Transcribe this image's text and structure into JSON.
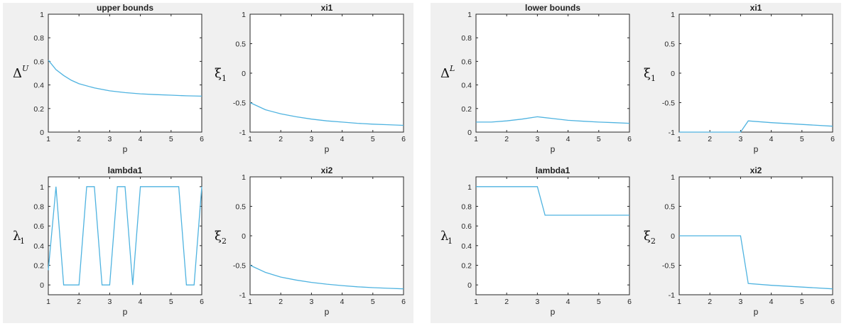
{
  "colors": {
    "series": "#4fb3e0",
    "figure_bg": "#f0f0f0",
    "axes_bg": "#ffffff",
    "axes_edge": "#262626"
  },
  "chart_data": [
    {
      "id": "ub",
      "figure": "left",
      "type": "line",
      "title": "upper bounds",
      "xlabel": "p",
      "ylabel": "Δ",
      "ylabel_sup": "U",
      "xlim": [
        1,
        6
      ],
      "ylim": [
        0,
        1
      ],
      "xticks": [
        "1",
        "2",
        "3",
        "4",
        "5",
        "6"
      ],
      "yticks": [
        "0",
        "0.2",
        "0.4",
        "0.6",
        "0.8",
        "1"
      ],
      "x": [
        1,
        1.25,
        1.5,
        1.75,
        2,
        2.5,
        3,
        3.5,
        4,
        4.5,
        5,
        5.5,
        6
      ],
      "y": [
        0.61,
        0.53,
        0.48,
        0.44,
        0.41,
        0.375,
        0.35,
        0.335,
        0.325,
        0.318,
        0.313,
        0.308,
        0.305
      ]
    },
    {
      "id": "xi1a",
      "figure": "left",
      "type": "line",
      "title": "xi1",
      "xlabel": "p",
      "ylabel": "ξ",
      "ylabel_sub": "1",
      "xlim": [
        1,
        6
      ],
      "ylim": [
        -1,
        1
      ],
      "xticks": [
        "1",
        "2",
        "3",
        "4",
        "5",
        "6"
      ],
      "yticks": [
        "-1",
        "-0.5",
        "0",
        "0.5",
        "1"
      ],
      "x": [
        1,
        1.5,
        2,
        2.5,
        3,
        3.5,
        4,
        4.5,
        5,
        5.5,
        6
      ],
      "y": [
        -0.5,
        -0.62,
        -0.69,
        -0.74,
        -0.78,
        -0.81,
        -0.83,
        -0.85,
        -0.865,
        -0.875,
        -0.885
      ]
    },
    {
      "id": "lam1a",
      "figure": "left",
      "type": "line",
      "title": "lambda1",
      "xlabel": "p",
      "ylabel": "λ",
      "ylabel_sub": "1",
      "xlim": [
        1,
        6
      ],
      "ylim": [
        -0.1,
        1.1
      ],
      "xticks": [
        "1",
        "2",
        "3",
        "4",
        "5",
        "6"
      ],
      "yticks": [
        "0",
        "0.2",
        "0.4",
        "0.6",
        "0.8",
        "1"
      ],
      "x": [
        1,
        1.25,
        1.5,
        2,
        2.25,
        2.5,
        2.75,
        3,
        3.25,
        3.5,
        3.75,
        4,
        4.25,
        5.25,
        5.5,
        5.75,
        6
      ],
      "y": [
        0.15,
        1,
        0,
        0,
        1,
        1,
        0,
        0,
        1,
        1,
        0,
        1,
        1,
        1,
        0,
        0,
        1
      ]
    },
    {
      "id": "xi2a",
      "figure": "left",
      "type": "line",
      "title": "xi2",
      "xlabel": "p",
      "ylabel": "ξ",
      "ylabel_sub": "2",
      "xlim": [
        1,
        6
      ],
      "ylim": [
        -1,
        1
      ],
      "xticks": [
        "1",
        "2",
        "3",
        "4",
        "5",
        "6"
      ],
      "yticks": [
        "-1",
        "-0.5",
        "0",
        "0.5",
        "1"
      ],
      "x": [
        1,
        1.5,
        2,
        2.5,
        3,
        3.5,
        4,
        4.5,
        5,
        5.5,
        6
      ],
      "y": [
        -0.5,
        -0.62,
        -0.7,
        -0.75,
        -0.79,
        -0.82,
        -0.845,
        -0.865,
        -0.88,
        -0.89,
        -0.9
      ]
    },
    {
      "id": "lb",
      "figure": "right",
      "type": "line",
      "title": "lower bounds",
      "xlabel": "p",
      "ylabel": "Δ",
      "ylabel_sup": "L",
      "xlim": [
        1,
        6
      ],
      "ylim": [
        0,
        1
      ],
      "xticks": [
        "1",
        "2",
        "3",
        "4",
        "5",
        "6"
      ],
      "yticks": [
        "0",
        "0.2",
        "0.4",
        "0.6",
        "0.8",
        "1"
      ],
      "x": [
        1,
        1.5,
        2,
        2.5,
        3,
        3.5,
        4,
        4.5,
        5,
        5.5,
        6
      ],
      "y": [
        0.085,
        0.085,
        0.095,
        0.11,
        0.13,
        0.115,
        0.1,
        0.092,
        0.085,
        0.08,
        0.075
      ]
    },
    {
      "id": "xi1b",
      "figure": "right",
      "type": "line",
      "title": "xi1",
      "xlabel": "p",
      "ylabel": "ξ",
      "ylabel_sub": "1",
      "xlim": [
        1,
        6
      ],
      "ylim": [
        -1,
        1
      ],
      "xticks": [
        "1",
        "2",
        "3",
        "4",
        "5",
        "6"
      ],
      "yticks": [
        "-1",
        "-0.5",
        "0",
        "0.5",
        "1"
      ],
      "x": [
        1,
        2,
        3,
        3.25,
        4,
        5,
        6
      ],
      "y": [
        -1,
        -1,
        -1,
        -0.81,
        -0.84,
        -0.87,
        -0.9
      ]
    },
    {
      "id": "lam1b",
      "figure": "right",
      "type": "line",
      "title": "lambda1",
      "xlabel": "p",
      "ylabel": "λ",
      "ylabel_sub": "1",
      "xlim": [
        1,
        6
      ],
      "ylim": [
        -0.1,
        1.1
      ],
      "xticks": [
        "1",
        "2",
        "3",
        "4",
        "5",
        "6"
      ],
      "yticks": [
        "0",
        "0.2",
        "0.4",
        "0.6",
        "0.8",
        "1"
      ],
      "x": [
        1,
        2,
        3,
        3.25,
        4,
        5,
        6
      ],
      "y": [
        1,
        1,
        1,
        0.71,
        0.71,
        0.71,
        0.71
      ]
    },
    {
      "id": "xi2b",
      "figure": "right",
      "type": "line",
      "title": "xi2",
      "xlabel": "p",
      "ylabel": "ξ",
      "ylabel_sub": "2",
      "xlim": [
        1,
        6
      ],
      "ylim": [
        -1,
        1
      ],
      "xticks": [
        "1",
        "2",
        "3",
        "4",
        "5",
        "6"
      ],
      "yticks": [
        "-1",
        "-0.5",
        "0",
        "0.5",
        "1"
      ],
      "x": [
        1,
        2,
        3,
        3.25,
        4,
        5,
        6
      ],
      "y": [
        0,
        0,
        0,
        -0.81,
        -0.84,
        -0.87,
        -0.9
      ]
    }
  ]
}
